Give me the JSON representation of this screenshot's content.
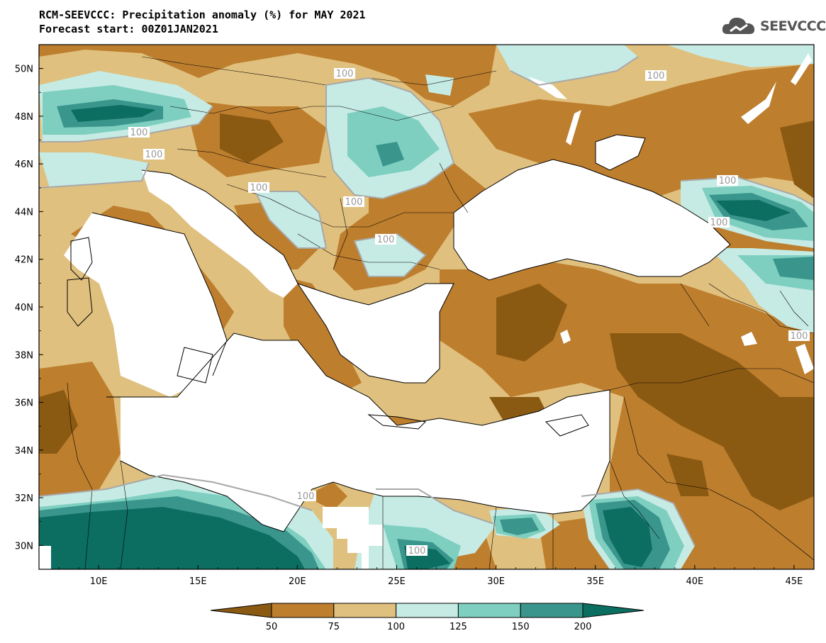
{
  "title_line1": "RCM-SEEVCCC: Precipitation anomaly (%) for MAY 2021",
  "title_line2": "Forecast start: 00Z01JAN2021",
  "logo_text": "SEEVCCC",
  "chart_data": {
    "type": "filled-contour-map",
    "variable": "Precipitation anomaly (%)",
    "lon_range": [
      7,
      46
    ],
    "lat_range": [
      29,
      51
    ],
    "x_ticks": [
      "10E",
      "15E",
      "20E",
      "25E",
      "30E",
      "35E",
      "40E",
      "45E"
    ],
    "y_ticks": [
      "30N",
      "32N",
      "34N",
      "36N",
      "38N",
      "40N",
      "42N",
      "44N",
      "46N",
      "48N",
      "50N"
    ],
    "contour_labels": [
      "100",
      "100",
      "100",
      "100",
      "100",
      "100",
      "100",
      "100",
      "100",
      "100",
      "100",
      "100"
    ],
    "colorbar": {
      "levels": [
        "50",
        "75",
        "100",
        "125",
        "150",
        "200"
      ],
      "colors": [
        "#8b5a12",
        "#bd7e2e",
        "#e0c07e",
        "#c6ebe4",
        "#7ecfc0",
        "#3a968c",
        "#0b6e60"
      ]
    }
  }
}
